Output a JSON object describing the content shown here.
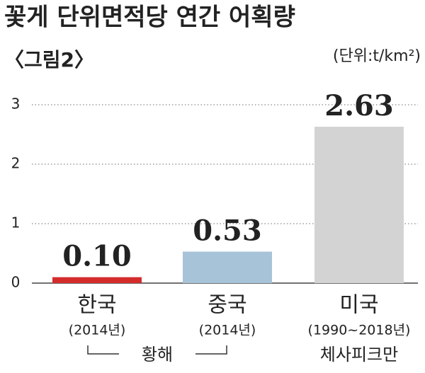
{
  "chart_data": {
    "type": "bar",
    "title": "꽃게 단위면적당 연간 어획량",
    "subtitle": "〈그림2〉",
    "unit": "(단위:t/km²)",
    "categories": [
      "한국",
      "중국",
      "미국"
    ],
    "category_notes": [
      "(2014년)",
      "(2014년)",
      "(1990~2018년)"
    ],
    "groups": [
      "황해",
      "체사피크만"
    ],
    "values": [
      0.1,
      0.53,
      2.63
    ],
    "value_labels": [
      "0.10",
      "0.53",
      "2.63"
    ],
    "colors": [
      "#d42b2b",
      "#a7c3d8",
      "#d3d3d3"
    ],
    "ylim": [
      0,
      3
    ],
    "yticks": [
      0,
      1,
      2,
      3
    ],
    "grid": true
  }
}
